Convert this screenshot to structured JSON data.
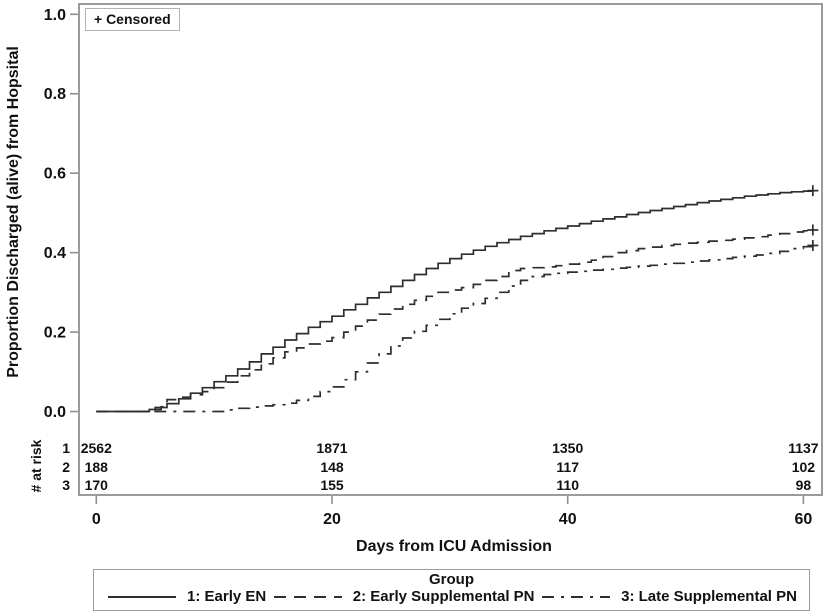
{
  "censored_legend": {
    "label": "+ Censored"
  },
  "axes": {
    "x": {
      "title": "Days from ICU Admission",
      "ticks": [
        {
          "label": "0",
          "value": 0
        },
        {
          "label": "20",
          "value": 20
        },
        {
          "label": "40",
          "value": 40
        },
        {
          "label": "60",
          "value": 60
        }
      ],
      "range": [
        -1.5,
        62
      ]
    },
    "y": {
      "title": "Proportion Discharged (alive) from Hopsital",
      "ticks": [
        {
          "label": "0.0",
          "value": 0.0
        },
        {
          "label": "0.2",
          "value": 0.2
        },
        {
          "label": "0.4",
          "value": 0.4
        },
        {
          "label": "0.6",
          "value": 0.6
        },
        {
          "label": "0.8",
          "value": 0.8
        },
        {
          "label": "1.0",
          "value": 1.0
        }
      ],
      "range": [
        0,
        1
      ]
    }
  },
  "at_risk": {
    "header": "# at risk",
    "column_days": [
      0,
      20,
      40,
      60
    ],
    "rows": [
      {
        "group": "1",
        "counts": [
          "2562",
          "1871",
          "1350",
          "1137"
        ]
      },
      {
        "group": "2",
        "counts": [
          "188",
          "148",
          "117",
          "102"
        ]
      },
      {
        "group": "3",
        "counts": [
          "170",
          "155",
          "110",
          "98"
        ]
      }
    ]
  },
  "legend": {
    "title": "Group",
    "entries": [
      {
        "id": "early-en",
        "label": "1: Early EN",
        "line": "solid"
      },
      {
        "id": "early-supplemental-pn",
        "label": "2: Early Supplemental PN",
        "line": "dashed"
      },
      {
        "id": "late-supplemental-pn",
        "label": "3: Late Supplemental PN",
        "line": "dashdot"
      }
    ]
  },
  "colors": {
    "curve": "#2e2e2e",
    "frame": "#8e8e8e",
    "text": "#111111"
  },
  "chart_data": {
    "type": "line",
    "subtype": "kaplan-meier-step",
    "title": "",
    "xlabel": "Days from ICU Admission",
    "ylabel": "Proportion Discharged (alive) from Hopsital",
    "xlim": [
      -1.5,
      62
    ],
    "ylim": [
      0,
      1
    ],
    "censor_marker": "+",
    "series": [
      {
        "name": "1: Early EN",
        "line": "solid",
        "points": [
          [
            0,
            0
          ],
          [
            4,
            0
          ],
          [
            4.5,
            0.005
          ],
          [
            5,
            0.01
          ],
          [
            6,
            0.02
          ],
          [
            7,
            0.032
          ],
          [
            8,
            0.046
          ],
          [
            9,
            0.06
          ],
          [
            10,
            0.075
          ],
          [
            11,
            0.09
          ],
          [
            12,
            0.107
          ],
          [
            13,
            0.125
          ],
          [
            14,
            0.145
          ],
          [
            15,
            0.162
          ],
          [
            16,
            0.18
          ],
          [
            17,
            0.196
          ],
          [
            18,
            0.212
          ],
          [
            19,
            0.226
          ],
          [
            20,
            0.24
          ],
          [
            21,
            0.256
          ],
          [
            22,
            0.27
          ],
          [
            23,
            0.286
          ],
          [
            24,
            0.3
          ],
          [
            25,
            0.315
          ],
          [
            26,
            0.33
          ],
          [
            27,
            0.345
          ],
          [
            28,
            0.36
          ],
          [
            29,
            0.373
          ],
          [
            30,
            0.385
          ],
          [
            31,
            0.396
          ],
          [
            32,
            0.406
          ],
          [
            33,
            0.416
          ],
          [
            34,
            0.425
          ],
          [
            35,
            0.433
          ],
          [
            36,
            0.441
          ],
          [
            37,
            0.448
          ],
          [
            38,
            0.455
          ],
          [
            39,
            0.461
          ],
          [
            40,
            0.467
          ],
          [
            41,
            0.473
          ],
          [
            42,
            0.479
          ],
          [
            43,
            0.485
          ],
          [
            44,
            0.49
          ],
          [
            45,
            0.496
          ],
          [
            46,
            0.501
          ],
          [
            47,
            0.506
          ],
          [
            48,
            0.511
          ],
          [
            49,
            0.516
          ],
          [
            50,
            0.521
          ],
          [
            51,
            0.526
          ],
          [
            52,
            0.53
          ],
          [
            53,
            0.534
          ],
          [
            54,
            0.538
          ],
          [
            55,
            0.542
          ],
          [
            56,
            0.545
          ],
          [
            57,
            0.548
          ],
          [
            58,
            0.551
          ],
          [
            59,
            0.553
          ],
          [
            60,
            0.555
          ],
          [
            60.8,
            0.556
          ]
        ],
        "censor_at": [
          60.8,
          0.556
        ]
      },
      {
        "name": "2: Early Supplemental PN",
        "line": "dashed",
        "points": [
          [
            0,
            0
          ],
          [
            4.5,
            0
          ],
          [
            5,
            0.005
          ],
          [
            5.5,
            0.012
          ],
          [
            6,
            0.03
          ],
          [
            7,
            0.036
          ],
          [
            8,
            0.042
          ],
          [
            9,
            0.05
          ],
          [
            10,
            0.06
          ],
          [
            11,
            0.074
          ],
          [
            12,
            0.09
          ],
          [
            13,
            0.105
          ],
          [
            14,
            0.12
          ],
          [
            15,
            0.135
          ],
          [
            16,
            0.15
          ],
          [
            17,
            0.16
          ],
          [
            18,
            0.17
          ],
          [
            19,
            0.177
          ],
          [
            20,
            0.186
          ],
          [
            21,
            0.2
          ],
          [
            22,
            0.215
          ],
          [
            23,
            0.23
          ],
          [
            24,
            0.245
          ],
          [
            25,
            0.258
          ],
          [
            26,
            0.27
          ],
          [
            27,
            0.28
          ],
          [
            28,
            0.29
          ],
          [
            29,
            0.3
          ],
          [
            30,
            0.306
          ],
          [
            31,
            0.312
          ],
          [
            32,
            0.32
          ],
          [
            33,
            0.33
          ],
          [
            34,
            0.34
          ],
          [
            35,
            0.355
          ],
          [
            36,
            0.36
          ],
          [
            37,
            0.362
          ],
          [
            38,
            0.364
          ],
          [
            39,
            0.367
          ],
          [
            40,
            0.371
          ],
          [
            41,
            0.376
          ],
          [
            42,
            0.381
          ],
          [
            43,
            0.39
          ],
          [
            44,
            0.4
          ],
          [
            45,
            0.405
          ],
          [
            46,
            0.41
          ],
          [
            47,
            0.414
          ],
          [
            48,
            0.418
          ],
          [
            49,
            0.421
          ],
          [
            50,
            0.424
          ],
          [
            51,
            0.426
          ],
          [
            52,
            0.429
          ],
          [
            53,
            0.431
          ],
          [
            54,
            0.434
          ],
          [
            55,
            0.437
          ],
          [
            56,
            0.44
          ],
          [
            57,
            0.444
          ],
          [
            58,
            0.448
          ],
          [
            59,
            0.452
          ],
          [
            60,
            0.455
          ],
          [
            60.8,
            0.457
          ]
        ],
        "censor_at": [
          60.8,
          0.457
        ]
      },
      {
        "name": "3: Late Supplemental PN",
        "line": "dashdot",
        "points": [
          [
            0,
            0
          ],
          [
            10,
            0
          ],
          [
            11,
            0.004
          ],
          [
            12,
            0.008
          ],
          [
            13,
            0.011
          ],
          [
            14,
            0.014
          ],
          [
            15,
            0.017
          ],
          [
            16,
            0.021
          ],
          [
            17,
            0.028
          ],
          [
            18,
            0.038
          ],
          [
            19,
            0.05
          ],
          [
            20,
            0.062
          ],
          [
            21,
            0.08
          ],
          [
            22,
            0.1
          ],
          [
            23,
            0.122
          ],
          [
            24,
            0.145
          ],
          [
            25,
            0.165
          ],
          [
            26,
            0.185
          ],
          [
            27,
            0.202
          ],
          [
            28,
            0.217
          ],
          [
            29,
            0.232
          ],
          [
            30,
            0.246
          ],
          [
            31,
            0.26
          ],
          [
            32,
            0.272
          ],
          [
            33,
            0.285
          ],
          [
            34,
            0.3
          ],
          [
            35,
            0.316
          ],
          [
            36,
            0.33
          ],
          [
            37,
            0.34
          ],
          [
            38,
            0.345
          ],
          [
            39,
            0.348
          ],
          [
            40,
            0.351
          ],
          [
            41,
            0.353
          ],
          [
            42,
            0.356
          ],
          [
            43,
            0.358
          ],
          [
            44,
            0.361
          ],
          [
            45,
            0.363
          ],
          [
            46,
            0.366
          ],
          [
            47,
            0.368
          ],
          [
            48,
            0.371
          ],
          [
            49,
            0.373
          ],
          [
            50,
            0.376
          ],
          [
            51,
            0.379
          ],
          [
            52,
            0.382
          ],
          [
            53,
            0.385
          ],
          [
            54,
            0.388
          ],
          [
            55,
            0.391
          ],
          [
            56,
            0.394
          ],
          [
            57,
            0.398
          ],
          [
            58,
            0.403
          ],
          [
            59,
            0.41
          ],
          [
            60,
            0.415
          ],
          [
            60.8,
            0.418
          ]
        ],
        "censor_at": [
          60.8,
          0.418
        ]
      }
    ]
  }
}
